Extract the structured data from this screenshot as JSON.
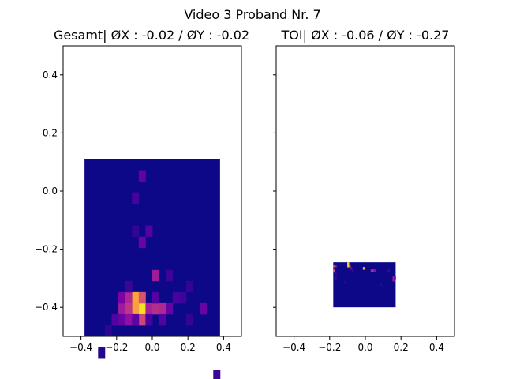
{
  "figure": {
    "suptitle": "Video 3 Proband Nr. 7"
  },
  "chart_data": [
    {
      "type": "heatmap",
      "title": "Gesamt| ØX : -0.02 / ØY : -0.02",
      "xlabel": "",
      "ylabel": "",
      "xlim": [
        -0.5,
        0.5
      ],
      "ylim": [
        -0.5,
        0.5
      ],
      "x_ticks": [
        "−0.4",
        "−0.2",
        "0.0",
        "0.2",
        "0.4"
      ],
      "x_tick_values": [
        -0.4,
        -0.2,
        0.0,
        0.2,
        0.4
      ],
      "y_ticks": [
        "−0.4",
        "−0.2",
        "0.0",
        "0.2",
        "0.4"
      ],
      "y_tick_values": [
        -0.4,
        -0.2,
        0.0,
        0.2,
        0.4
      ],
      "colormap": "plasma",
      "grid": false,
      "extent": {
        "x": [
          -0.38,
          0.38
        ],
        "y": [
          -0.5,
          0.11
        ]
      },
      "bins": {
        "nx": 20,
        "ny": 16
      },
      "background_level": 0.0,
      "hot_cells": [
        {
          "i": 8,
          "j": 13,
          "v": 0.95
        },
        {
          "i": 7,
          "j": 13,
          "v": 0.78
        },
        {
          "i": 7,
          "j": 12,
          "v": 0.8
        },
        {
          "i": 8,
          "j": 12,
          "v": 0.55
        },
        {
          "i": 6,
          "j": 12,
          "v": 0.4
        },
        {
          "i": 6,
          "j": 13,
          "v": 0.45
        },
        {
          "i": 5,
          "j": 13,
          "v": 0.35
        },
        {
          "i": 5,
          "j": 12,
          "v": 0.25
        },
        {
          "i": 6,
          "j": 14,
          "v": 0.3
        },
        {
          "i": 5,
          "j": 14,
          "v": 0.2
        },
        {
          "i": 8,
          "j": 14,
          "v": 0.5
        },
        {
          "i": 9,
          "j": 13,
          "v": 0.38
        },
        {
          "i": 10,
          "j": 13,
          "v": 0.42
        },
        {
          "i": 11,
          "j": 13,
          "v": 0.4
        },
        {
          "i": 10,
          "j": 12,
          "v": 0.15
        },
        {
          "i": 12,
          "j": 13,
          "v": 0.2
        },
        {
          "i": 11,
          "j": 14,
          "v": 0.15
        },
        {
          "i": 9,
          "j": 14,
          "v": 0.12
        },
        {
          "i": 7,
          "j": 14,
          "v": 0.18
        },
        {
          "i": 4,
          "j": 14,
          "v": 0.15
        },
        {
          "i": 10,
          "j": 10,
          "v": 0.35
        },
        {
          "i": 8,
          "j": 7,
          "v": 0.2
        },
        {
          "i": 9,
          "j": 6,
          "v": 0.15
        },
        {
          "i": 8,
          "j": 1,
          "v": 0.18
        },
        {
          "i": 7,
          "j": 3,
          "v": 0.12
        },
        {
          "i": 7,
          "j": 6,
          "v": 0.08
        },
        {
          "i": 12,
          "j": 10,
          "v": 0.1
        },
        {
          "i": 13,
          "j": 12,
          "v": 0.12
        },
        {
          "i": 14,
          "j": 12,
          "v": 0.1
        },
        {
          "i": 15,
          "j": 11,
          "v": 0.08
        },
        {
          "i": 17,
          "j": 13,
          "v": 0.2
        },
        {
          "i": 15,
          "j": 14,
          "v": 0.08
        },
        {
          "i": 18,
          "j": 20,
          "v": 0.12
        },
        {
          "i": 19,
          "j": 20,
          "v": 0.18
        },
        {
          "i": 19,
          "j": 19,
          "v": 0.1
        },
        {
          "i": 0,
          "j": 20,
          "v": 0.2
        },
        {
          "i": 6,
          "j": 11,
          "v": 0.1
        },
        {
          "i": 3,
          "j": 15,
          "v": 0.06
        },
        {
          "i": 2,
          "j": 17,
          "v": 0.05
        }
      ]
    },
    {
      "type": "heatmap",
      "title": "TOI| ØX : -0.06 / ØY : -0.27",
      "xlabel": "",
      "ylabel": "",
      "xlim": [
        -0.5,
        0.5
      ],
      "ylim": [
        -0.5,
        0.5
      ],
      "x_ticks": [
        "−0.4",
        "−0.2",
        "0.0",
        "0.2",
        "0.4"
      ],
      "x_tick_values": [
        -0.4,
        -0.2,
        0.0,
        0.2,
        0.4
      ],
      "y_tick_values": [
        -0.4,
        -0.2,
        0.0,
        0.2,
        0.4
      ],
      "y_tick_labels_shown": false,
      "colormap": "plasma",
      "grid": false,
      "extent": {
        "x": [
          -0.18,
          0.17
        ],
        "y": [
          -0.4,
          -0.245
        ]
      },
      "bins": {
        "nx": 40,
        "ny": 19
      },
      "background_level": 0.0,
      "hot_cells": [
        {
          "i": 9,
          "j": 0,
          "v": 0.95
        },
        {
          "i": 9,
          "j": 1,
          "v": 0.9
        },
        {
          "i": 10,
          "j": 1,
          "v": 0.6
        },
        {
          "i": 0,
          "j": 1,
          "v": 0.5
        },
        {
          "i": 1,
          "j": 1,
          "v": 0.35
        },
        {
          "i": 0,
          "j": 3,
          "v": 0.55
        },
        {
          "i": 1,
          "j": 4,
          "v": 0.15
        },
        {
          "i": 1,
          "j": 6,
          "v": 0.12
        },
        {
          "i": 11,
          "j": 2,
          "v": 0.25
        },
        {
          "i": 19,
          "j": 2,
          "v": 0.85
        },
        {
          "i": 24,
          "j": 3,
          "v": 0.4
        },
        {
          "i": 25,
          "j": 3,
          "v": 0.4
        },
        {
          "i": 26,
          "j": 3,
          "v": 0.3
        },
        {
          "i": 35,
          "j": 3,
          "v": 0.12
        },
        {
          "i": 38,
          "j": 6,
          "v": 0.35
        },
        {
          "i": 38,
          "j": 7,
          "v": 0.35
        },
        {
          "i": 39,
          "j": 6,
          "v": 0.2
        },
        {
          "i": 12,
          "j": 3,
          "v": 0.1
        },
        {
          "i": 7,
          "j": 8,
          "v": 0.08
        },
        {
          "i": 30,
          "j": 9,
          "v": 0.06
        }
      ]
    }
  ]
}
